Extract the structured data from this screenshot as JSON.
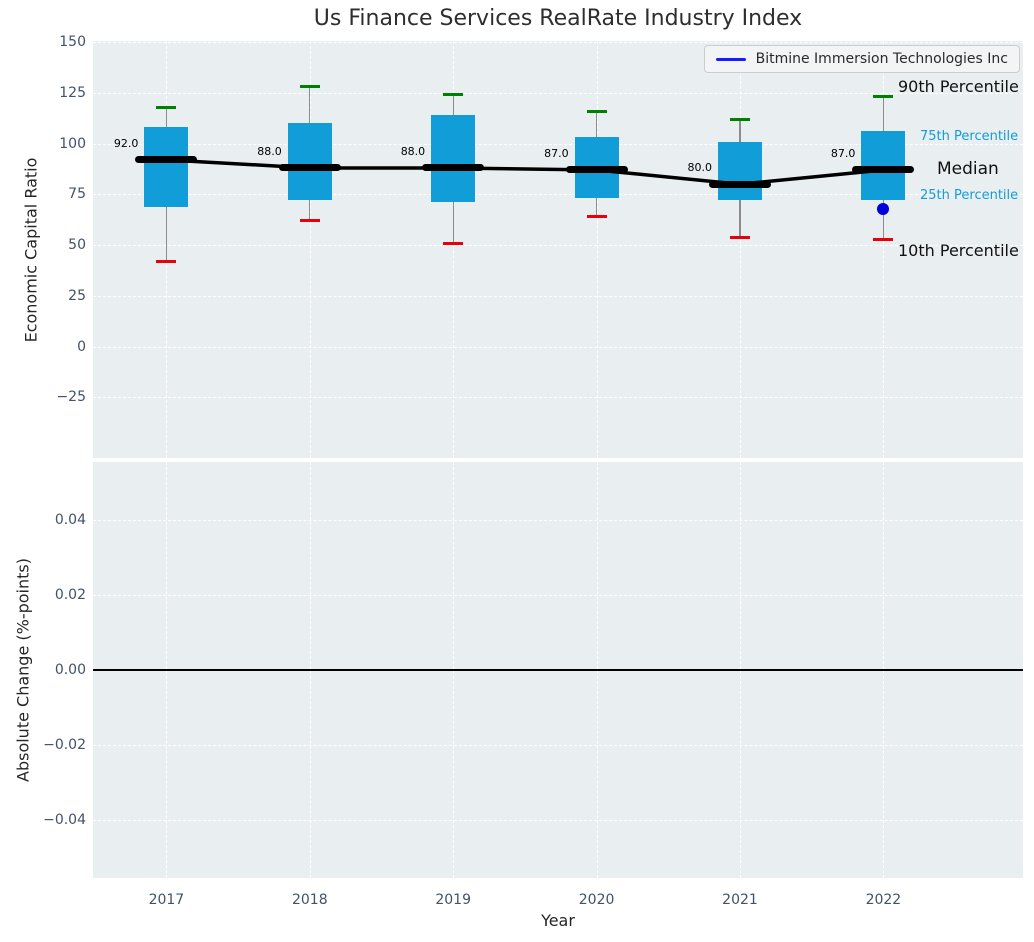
{
  "chart_data": {
    "type": "boxplot",
    "title": "Us Finance Services RealRate Industry Index",
    "xlabel": "Year",
    "categories": [
      "2017",
      "2018",
      "2019",
      "2020",
      "2021",
      "2022"
    ],
    "legend": {
      "label": "Bitmine Immersion Technologies Inc",
      "line_color": "#1a1aff"
    },
    "panels": [
      {
        "name": "economic-capital-ratio",
        "ylabel": "Economic Capital Ratio",
        "ylim": [
          -55,
          150
        ],
        "grid": "dashed-white",
        "yticks": [
          {
            "value": 150,
            "label": "150"
          },
          {
            "value": 125,
            "label": "125"
          },
          {
            "value": 100,
            "label": "100"
          },
          {
            "value": 75,
            "label": "75"
          },
          {
            "value": 50,
            "label": "50"
          },
          {
            "value": 25,
            "label": "25"
          },
          {
            "value": 0,
            "label": "0"
          },
          {
            "value": -25,
            "label": "−25"
          }
        ],
        "boxes": [
          {
            "category": "2017",
            "p10": 42,
            "p25": 69,
            "median": 92,
            "p75": 108,
            "p90": 118
          },
          {
            "category": "2018",
            "p10": 62,
            "p25": 72,
            "median": 88,
            "p75": 110,
            "p90": 128
          },
          {
            "category": "2019",
            "p10": 51,
            "p25": 71,
            "median": 88,
            "p75": 114,
            "p90": 124
          },
          {
            "category": "2020",
            "p10": 64,
            "p25": 73,
            "median": 87,
            "p75": 103,
            "p90": 116
          },
          {
            "category": "2021",
            "p10": 54,
            "p25": 72,
            "median": 80,
            "p75": 101,
            "p90": 112
          },
          {
            "category": "2022",
            "p10": 53,
            "p25": 72,
            "median": 87,
            "p75": 106,
            "p90": 123
          }
        ],
        "median_trend": [
          92,
          88,
          88,
          87,
          80,
          87
        ],
        "median_labels": [
          "92.0",
          "88.0",
          "88.0",
          "87.0",
          "80.0",
          "87.0"
        ],
        "company_point": {
          "category": "2022",
          "value": 68
        },
        "percentile_annotations": [
          {
            "text": "90th Percentile",
            "kind": "p90",
            "value": 128
          },
          {
            "text": "75th Percentile",
            "kind": "p75",
            "value": 103
          },
          {
            "text": "Median",
            "kind": "median",
            "value": 87
          },
          {
            "text": "25th Percentile",
            "kind": "p25",
            "value": 74
          },
          {
            "text": "10th Percentile",
            "kind": "p10",
            "value": 47
          }
        ]
      },
      {
        "name": "absolute-change",
        "ylabel": "Absolute Change (%-points)",
        "ylim": [
          -0.055,
          0.055
        ],
        "grid": "dashed-white",
        "yticks": [
          {
            "value": 0.04,
            "label": "0.04"
          },
          {
            "value": 0.02,
            "label": "0.02"
          },
          {
            "value": 0,
            "label": "0.00"
          },
          {
            "value": -0.02,
            "label": "−0.02"
          },
          {
            "value": -0.04,
            "label": "−0.04"
          }
        ],
        "zero_line": 0.0
      }
    ],
    "colors": {
      "box_fill": "#119dd8",
      "p90_cap": "#008000",
      "p10_cap": "#e8000b",
      "median": "#000000",
      "whisker": "#8c8c8c",
      "company_line": "#1a1aff",
      "company_point": "#0000dd",
      "percentile_label_blue": "#119dd8",
      "plot_bg": "#e9eef1",
      "grid": "#ffffff",
      "tick_label": "#42526b"
    }
  }
}
